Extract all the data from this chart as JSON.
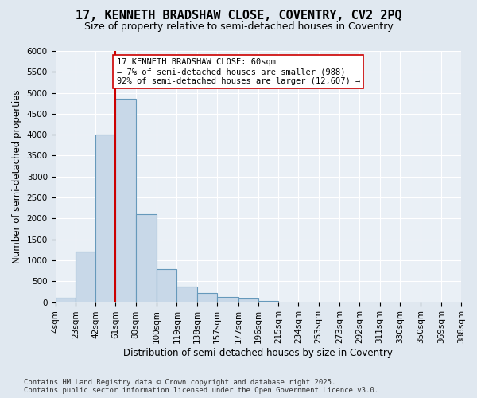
{
  "title1": "17, KENNETH BRADSHAW CLOSE, COVENTRY, CV2 2PQ",
  "title2": "Size of property relative to semi-detached houses in Coventry",
  "xlabel": "Distribution of semi-detached houses by size in Coventry",
  "ylabel": "Number of semi-detached properties",
  "footnote": "Contains HM Land Registry data © Crown copyright and database right 2025.\nContains public sector information licensed under the Open Government Licence v3.0.",
  "annotation_line1": "17 KENNETH BRADSHAW CLOSE: 60sqm",
  "annotation_line2": "← 7% of semi-detached houses are smaller (988)",
  "annotation_line3": "92% of semi-detached houses are larger (12,607) →",
  "bar_color": "#c8d8e8",
  "bar_edge_color": "#6699bb",
  "vline_color": "#cc0000",
  "vline_x": 61,
  "bins": [
    4,
    23,
    42,
    61,
    80,
    100,
    119,
    138,
    157,
    177,
    196,
    215,
    234,
    253,
    273,
    292,
    311,
    330,
    350,
    369,
    388
  ],
  "tick_positions": [
    4,
    23,
    42,
    61,
    80,
    100,
    119,
    138,
    157,
    177,
    196,
    215,
    234,
    253,
    273,
    292,
    311,
    330,
    350,
    369,
    388
  ],
  "tick_labels": [
    "4sqm",
    "23sqm",
    "42sqm",
    "61sqm",
    "80sqm",
    "100sqm",
    "119sqm",
    "138sqm",
    "157sqm",
    "177sqm",
    "196sqm",
    "215sqm",
    "234sqm",
    "253sqm",
    "273sqm",
    "292sqm",
    "311sqm",
    "330sqm",
    "350sqm",
    "369sqm",
    "388sqm"
  ],
  "values": [
    100,
    1200,
    4000,
    4850,
    2100,
    800,
    380,
    220,
    130,
    80,
    30,
    0,
    0,
    0,
    0,
    0,
    0,
    0,
    0,
    0
  ],
  "ylim": [
    0,
    6000
  ],
  "yticks": [
    0,
    500,
    1000,
    1500,
    2000,
    2500,
    3000,
    3500,
    4000,
    4500,
    5000,
    5500,
    6000
  ],
  "background_color": "#e0e8f0",
  "plot_bg_color": "#eaf0f6",
  "grid_color": "#ffffff",
  "title1_fontsize": 11,
  "title2_fontsize": 9,
  "axis_label_fontsize": 8.5,
  "tick_fontsize": 7.5,
  "footnote_fontsize": 6.5,
  "annotation_fontsize": 7.5
}
